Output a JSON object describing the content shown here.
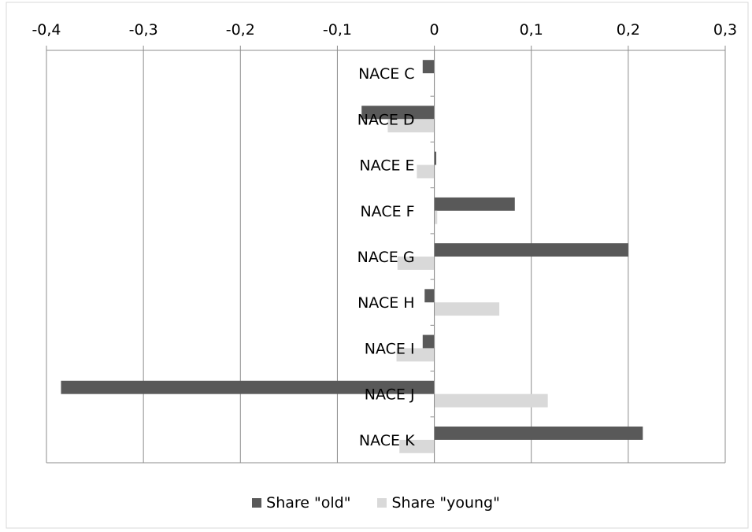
{
  "chart_data": {
    "type": "bar",
    "orientation": "horizontal",
    "categories": [
      "NACE C",
      "NACE D",
      "NACE E",
      "NACE F",
      "NACE G",
      "NACE H",
      "NACE I",
      "NACE J",
      "NACE K"
    ],
    "series": [
      {
        "name": "Share \"old\"",
        "color": "#595959",
        "values": [
          -0.012,
          -0.075,
          0.002,
          0.083,
          0.2,
          -0.01,
          -0.012,
          -0.385,
          0.215
        ]
      },
      {
        "name": "Share \"young\"",
        "color": "#d9d9d9",
        "values": [
          0.0,
          -0.048,
          -0.018,
          0.003,
          -0.038,
          0.067,
          -0.039,
          0.117,
          -0.036
        ]
      }
    ],
    "xlim": [
      -0.4,
      0.3
    ],
    "x_ticks": [
      -0.4,
      -0.3,
      -0.2,
      -0.1,
      0,
      0.1,
      0.2,
      0.3
    ],
    "x_tick_labels": [
      "-0,4",
      "-0,3",
      "-0,2",
      "-0,1",
      "0",
      "0,1",
      "0,2",
      "0,3"
    ],
    "x_axis_position": "top",
    "grid": true,
    "legend_position": "bottom"
  }
}
